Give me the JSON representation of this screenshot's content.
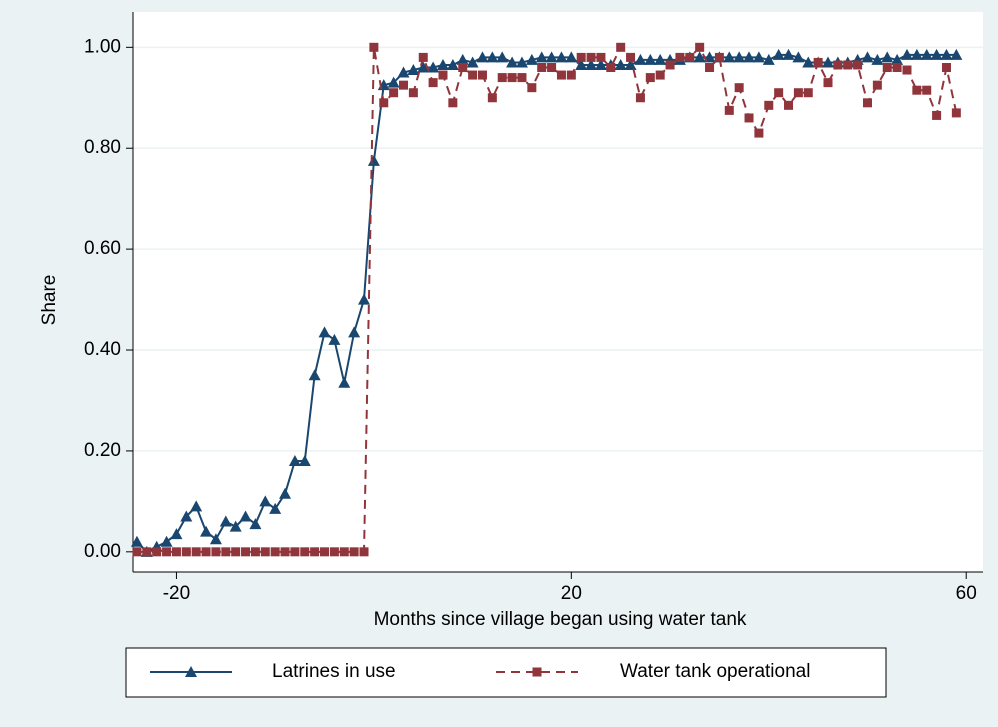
{
  "chart_data": {
    "type": "line",
    "xlabel": "Months since village began using water tank",
    "ylabel": "Share",
    "x": [
      -24,
      -23,
      -22,
      -21,
      -20,
      -19,
      -18,
      -17,
      -16,
      -15,
      -14,
      -13,
      -12,
      -11,
      -10,
      -9,
      -8,
      -7,
      -6,
      -5,
      -4,
      -3,
      -2,
      -1,
      0,
      1,
      2,
      3,
      4,
      5,
      6,
      7,
      8,
      9,
      10,
      11,
      12,
      13,
      14,
      15,
      16,
      17,
      18,
      19,
      20,
      21,
      22,
      23,
      24,
      25,
      26,
      27,
      28,
      29,
      30,
      31,
      32,
      33,
      34,
      35,
      36,
      37,
      38,
      39,
      40,
      41,
      42,
      43,
      44,
      45,
      46,
      47,
      48,
      49,
      50,
      51,
      52,
      53,
      54,
      55,
      56,
      57,
      58,
      59
    ],
    "series": [
      {
        "name": "Latrines in use",
        "color": "#1a476f",
        "dash": false,
        "marker": "triangle",
        "values": [
          0.02,
          0.0,
          0.01,
          0.02,
          0.035,
          0.07,
          0.09,
          0.04,
          0.025,
          0.06,
          0.05,
          0.07,
          0.055,
          0.1,
          0.085,
          0.115,
          0.18,
          0.18,
          0.35,
          0.435,
          0.42,
          0.335,
          0.435,
          0.5,
          0.775,
          0.925,
          0.93,
          0.95,
          0.955,
          0.96,
          0.96,
          0.965,
          0.965,
          0.975,
          0.97,
          0.98,
          0.98,
          0.98,
          0.97,
          0.97,
          0.975,
          0.98,
          0.98,
          0.98,
          0.98,
          0.965,
          0.965,
          0.965,
          0.965,
          0.965,
          0.965,
          0.975,
          0.975,
          0.975,
          0.975,
          0.975,
          0.98,
          0.98,
          0.98,
          0.98,
          0.98,
          0.98,
          0.98,
          0.98,
          0.975,
          0.985,
          0.985,
          0.98,
          0.97,
          0.97,
          0.97,
          0.97,
          0.97,
          0.975,
          0.98,
          0.975,
          0.98,
          0.975,
          0.985,
          0.985,
          0.985,
          0.985,
          0.985,
          0.985
        ]
      },
      {
        "name": "Water tank operational",
        "color": "#90353b",
        "dash": true,
        "marker": "square",
        "values": [
          0,
          0,
          0,
          0,
          0,
          0,
          0,
          0,
          0,
          0,
          0,
          0,
          0,
          0,
          0,
          0,
          0,
          0,
          0,
          0,
          0,
          0,
          0,
          0,
          1.0,
          0.89,
          0.91,
          0.925,
          0.91,
          0.98,
          0.93,
          0.945,
          0.89,
          0.96,
          0.945,
          0.945,
          0.9,
          0.94,
          0.94,
          0.94,
          0.92,
          0.96,
          0.96,
          0.945,
          0.945,
          0.98,
          0.98,
          0.98,
          0.96,
          1.0,
          0.98,
          0.9,
          0.94,
          0.945,
          0.965,
          0.98,
          0.98,
          1.0,
          0.96,
          0.98,
          0.875,
          0.92,
          0.86,
          0.83,
          0.885,
          0.91,
          0.885,
          0.91,
          0.91,
          0.97,
          0.93,
          0.965,
          0.965,
          0.965,
          0.89,
          0.925,
          0.96,
          0.96,
          0.955,
          0.915,
          0.915,
          0.865,
          0.96,
          0.87
        ]
      }
    ],
    "xlim": [
      -24.4,
      61.7
    ],
    "ylim": [
      -0.04,
      1.07
    ],
    "xticks": [
      -20,
      20,
      60
    ],
    "yticks": [
      {
        "value": 0,
        "label": "0.00"
      },
      {
        "value": 0.2,
        "label": "0.20"
      },
      {
        "value": 0.4,
        "label": "0.40"
      },
      {
        "value": 0.6,
        "label": "0.60"
      },
      {
        "value": 0.8,
        "label": "0.80"
      },
      {
        "value": 1,
        "label": "1.00"
      }
    ],
    "grid": true,
    "legend": "bottom"
  }
}
